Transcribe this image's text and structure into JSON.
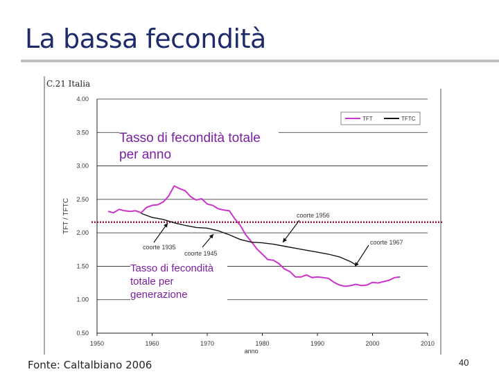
{
  "slide": {
    "title": "La bassa fecondità",
    "source": "Fonte: Caltalbiano 2006",
    "page_number": "40"
  },
  "annotations": {
    "period_label": "Tasso di fecondità totale per anno",
    "cohort_label": "Tasso di fecondità totale per generazione"
  },
  "colors": {
    "title": "#1f2a6b",
    "tft_series": "#cc33cc",
    "tftc_series": "#111111",
    "annotation_text": "#7a1fa0",
    "reference_line": "#8b1a3a"
  },
  "chart_data": {
    "type": "line",
    "title": "C.21 Italia",
    "xlabel": "anno",
    "ylabel": "TFT / TFTC",
    "xlim": [
      1950,
      2010
    ],
    "ylim": [
      0.5,
      4.0
    ],
    "x_ticks": [
      "1950",
      "1960",
      "1970",
      "1980",
      "1990",
      "2000",
      "2010"
    ],
    "y_ticks": [
      "0.50",
      "1.00",
      "1.50",
      "2.00",
      "2.50",
      "3.00",
      "3.50",
      "4.00"
    ],
    "grid": "horizontal",
    "legend_position": "top-right",
    "reference_line": 2.16,
    "series": [
      {
        "name": "TFT",
        "color": "#cc33cc",
        "x": [
          1952,
          1953,
          1954,
          1955,
          1956,
          1957,
          1958,
          1959,
          1960,
          1961,
          1962,
          1963,
          1964,
          1965,
          1966,
          1967,
          1968,
          1969,
          1970,
          1971,
          1972,
          1973,
          1974,
          1975,
          1976,
          1977,
          1978,
          1979,
          1980,
          1981,
          1982,
          1983,
          1984,
          1985,
          1986,
          1987,
          1988,
          1989,
          1990,
          1991,
          1992,
          1993,
          1994,
          1995,
          1996,
          1997,
          1998,
          1999,
          2000,
          2001,
          2002,
          2003,
          2004,
          2005
        ],
        "values": [
          2.32,
          2.3,
          2.35,
          2.33,
          2.32,
          2.33,
          2.3,
          2.38,
          2.41,
          2.42,
          2.46,
          2.55,
          2.7,
          2.66,
          2.63,
          2.54,
          2.49,
          2.51,
          2.43,
          2.41,
          2.36,
          2.34,
          2.33,
          2.21,
          2.11,
          1.97,
          1.87,
          1.76,
          1.68,
          1.6,
          1.59,
          1.54,
          1.46,
          1.42,
          1.34,
          1.34,
          1.37,
          1.33,
          1.34,
          1.33,
          1.32,
          1.26,
          1.22,
          1.2,
          1.21,
          1.23,
          1.21,
          1.22,
          1.26,
          1.25,
          1.27,
          1.29,
          1.33,
          1.34
        ]
      },
      {
        "name": "TFTC",
        "color": "#111111",
        "x": [
          1958,
          1960,
          1962,
          1964,
          1966,
          1968,
          1970,
          1972,
          1974,
          1976,
          1978,
          1980,
          1982,
          1984,
          1986,
          1988,
          1990,
          1992,
          1994,
          1996,
          1997
        ],
        "values": [
          2.29,
          2.23,
          2.2,
          2.15,
          2.11,
          2.08,
          2.07,
          2.03,
          1.97,
          1.9,
          1.86,
          1.85,
          1.83,
          1.8,
          1.77,
          1.74,
          1.71,
          1.68,
          1.64,
          1.57,
          1.52
        ]
      }
    ],
    "annotations": [
      "coorte 1935",
      "coorte 1945",
      "coorte 1956",
      "coorte 1967"
    ]
  }
}
